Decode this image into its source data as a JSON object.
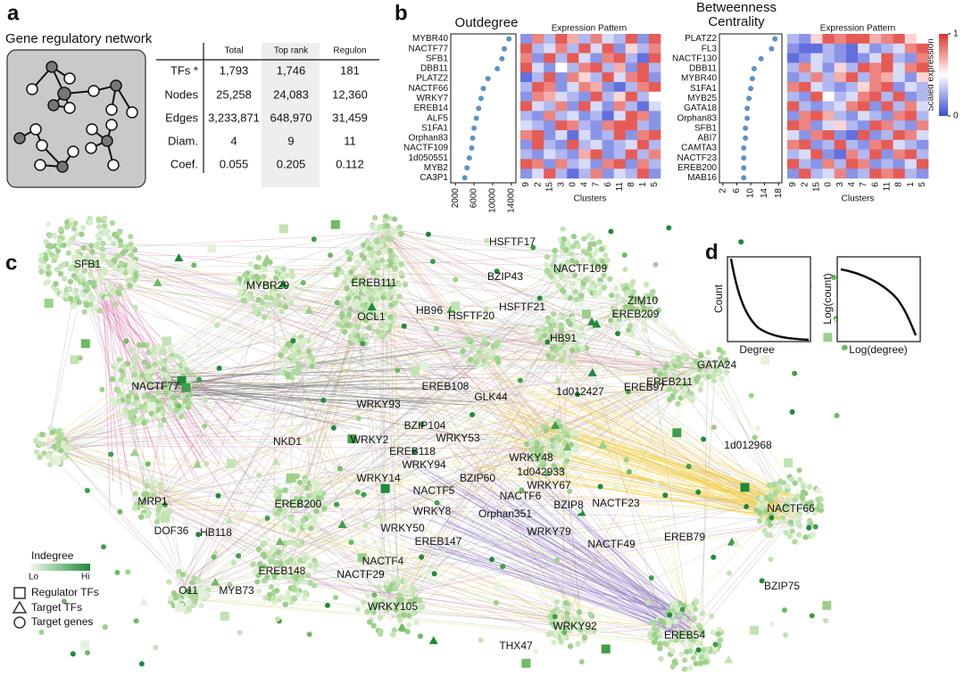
{
  "panel_labels": [
    "a",
    "b",
    "c",
    "d"
  ],
  "panel_a": {
    "title": "Gene regulatory network",
    "table": {
      "columns": [
        "Total",
        "Top rank",
        "Regulon"
      ],
      "rows": [
        {
          "label": "TFs *",
          "cells": [
            "1,793",
            "1,746",
            "181"
          ]
        },
        {
          "label": "Nodes",
          "cells": [
            "25,258",
            "24,083",
            "12,360"
          ]
        },
        {
          "label": "Edges",
          "cells": [
            "3,233,871",
            "648,970",
            "31,459"
          ]
        },
        {
          "label": "Diam.",
          "cells": [
            "4",
            "9",
            "11"
          ]
        },
        {
          "label": "Coef.",
          "cells": [
            "0.055",
            "0.205",
            "0.112"
          ]
        }
      ]
    }
  },
  "chart_data": [
    {
      "type": "dot",
      "title": "Outdegree",
      "color": "#5b93c9",
      "categories": [
        "MYBR40",
        "NACTF77",
        "SFB1",
        "DBB11",
        "PLATZ2",
        "NACTF66",
        "WRKY7",
        "EREB14",
        "ALF5",
        "S1FA1",
        "Orphan83",
        "NACTF109",
        "1d050551",
        "MYB2",
        "CA3P1"
      ],
      "values": [
        13500,
        12500,
        12000,
        11000,
        9000,
        8000,
        7500,
        7000,
        6500,
        6000,
        5700,
        5500,
        5000,
        4500,
        4000
      ],
      "xlim": [
        1000,
        15000
      ],
      "xticks": [
        2000,
        6000,
        10000,
        14000
      ]
    },
    {
      "type": "heatmap",
      "title": "Expression Pattern",
      "x_label": "Clusters",
      "zlim": [
        0,
        1
      ],
      "categories": [
        "9",
        "2",
        "15",
        "3",
        "0",
        "4",
        "7",
        "6",
        "11",
        "8",
        "1",
        "5"
      ],
      "values": [
        [
          0.2,
          0.8,
          0.3,
          0.9,
          0.7,
          0.3,
          0.8,
          0.4,
          0.3,
          0.9,
          0.2,
          0.9
        ],
        [
          0.9,
          0.3,
          0.4,
          0.8,
          0.3,
          0.9,
          0.4,
          0.9,
          0.2,
          0.6,
          0.3,
          0.8
        ],
        [
          0.8,
          0.2,
          0.9,
          0.3,
          0.9,
          0.4,
          0.2,
          0.8,
          0.9,
          0.3,
          0.1,
          0.9
        ],
        [
          0.9,
          0.4,
          0.2,
          0.5,
          0.3,
          0.8,
          0.9,
          0.3,
          0.7,
          0.2,
          0.9,
          0.3
        ],
        [
          0.1,
          0.3,
          0.9,
          0.2,
          0.8,
          0.6,
          0.3,
          0.9,
          0.4,
          0.8,
          0.9,
          0.2
        ],
        [
          0.3,
          0.9,
          0.8,
          0.2,
          0.4,
          0.8,
          0.7,
          0.2,
          0.1,
          0.3,
          0.8,
          0.9
        ],
        [
          0.2,
          0.8,
          0.7,
          0.4,
          0.3,
          0.2,
          0.9,
          0.3,
          0.6,
          0.9,
          0.3,
          0.5
        ],
        [
          0.9,
          0.4,
          0.3,
          0.8,
          0.2,
          0.9,
          0.4,
          0.2,
          0.8,
          0.3,
          0.1,
          0.4
        ],
        [
          0.3,
          0.2,
          0.8,
          0.3,
          0.4,
          0.2,
          0.3,
          0.1,
          0.4,
          0.9,
          0.8,
          0.2
        ],
        [
          0.4,
          0.3,
          0.2,
          0.9,
          0.8,
          0.3,
          0.2,
          0.8,
          0.9,
          0.9,
          0.3,
          0.2
        ],
        [
          0.8,
          0.9,
          0.2,
          0.4,
          0.1,
          0.4,
          0.2,
          0.3,
          0.9,
          0.2,
          0.8,
          0.9
        ],
        [
          0.2,
          0.9,
          0.3,
          0.2,
          0.9,
          0.3,
          0.4,
          0.2,
          0.3,
          0.4,
          0.9,
          0.3
        ],
        [
          0.3,
          0.2,
          0.4,
          0.3,
          0.2,
          0.7,
          0.9,
          0.2,
          0.3,
          0.9,
          0.3,
          0.8
        ],
        [
          0.9,
          0.8,
          0.2,
          0.8,
          0.3,
          0.4,
          0.2,
          0.8,
          0.9,
          0.2,
          0.8,
          0.3
        ],
        [
          0.2,
          0.4,
          0.9,
          0.3,
          0.1,
          0.3,
          0.8,
          0.2,
          0.4,
          0.3,
          0.9,
          0.2
        ]
      ]
    },
    {
      "type": "dot",
      "title": "Betweenness Centrality",
      "color": "#5b93c9",
      "categories": [
        "PLATZ2",
        "FL3",
        "NACTF130",
        "DBB11",
        "MYBR40",
        "S1FA1",
        "MYB25",
        "GATA18",
        "Orphan83",
        "SFB1",
        "ABI7",
        "CAMTA3",
        "NACTF23",
        "EREB200",
        "MAB16"
      ],
      "values": [
        17,
        16,
        13,
        11,
        10.5,
        10,
        9.5,
        9,
        9,
        8.5,
        8.5,
        8,
        8,
        8,
        8
      ],
      "xlim": [
        1,
        19
      ],
      "xticks": [
        2,
        6,
        10,
        14,
        18
      ]
    },
    {
      "type": "heatmap",
      "title": "Expression Pattern",
      "x_label": "Clusters",
      "zlim": [
        0,
        1
      ],
      "zticks": [
        0,
        1
      ],
      "zlabel": "Scaled expression",
      "categories": [
        "9",
        "2",
        "15",
        "0",
        "3",
        "4",
        "7",
        "6",
        "11",
        "8",
        "1",
        "5"
      ],
      "values": [
        [
          0.3,
          0.2,
          0.6,
          0.9,
          0.8,
          0.9,
          0.9,
          0.7,
          0.8,
          0.9,
          0.6,
          0.5
        ],
        [
          0.2,
          0.1,
          0.1,
          0.3,
          0.2,
          0.1,
          0.4,
          0.2,
          0.3,
          0.4,
          0.8,
          0.9
        ],
        [
          0.1,
          0.2,
          0.4,
          0.3,
          0.2,
          0.1,
          0.2,
          0.4,
          0.9,
          0.3,
          0.2,
          0.8
        ],
        [
          0.3,
          0.8,
          0.4,
          0.2,
          0.6,
          0.3,
          0.9,
          0.8,
          0.9,
          0.4,
          0.8,
          0.9
        ],
        [
          0.2,
          0.3,
          0.8,
          0.3,
          0.7,
          0.9,
          0.3,
          0.8,
          0.7,
          0.4,
          0.2,
          0.6
        ],
        [
          0.8,
          0.9,
          0.4,
          0.3,
          0.2,
          0.3,
          0.6,
          0.8,
          0.9,
          0.2,
          0.4,
          0.3
        ],
        [
          0.3,
          0.2,
          0.9,
          0.5,
          0.3,
          0.4,
          0.8,
          0.9,
          0.3,
          0.9,
          0.2,
          0.3
        ],
        [
          0.9,
          0.3,
          0.2,
          0.3,
          0.4,
          0.8,
          0.9,
          0.2,
          0.9,
          0.3,
          0.8,
          0.4
        ],
        [
          0.2,
          0.8,
          0.9,
          0.7,
          0.3,
          0.2,
          0.4,
          0.3,
          0.2,
          0.8,
          0.9,
          0.3
        ],
        [
          0.9,
          0.8,
          0.2,
          0.4,
          0.6,
          0.3,
          0.2,
          0.9,
          0.8,
          0.3,
          0.2,
          0.8
        ],
        [
          0.4,
          0.2,
          0.8,
          0.9,
          0.2,
          0.1,
          0.9,
          0.2,
          0.3,
          0.9,
          0.8,
          0.4
        ],
        [
          0.8,
          0.9,
          0.2,
          0.3,
          0.9,
          0.3,
          0.2,
          0.8,
          0.9,
          0.4,
          0.3,
          0.2
        ],
        [
          0.3,
          0.4,
          0.9,
          0.2,
          0.1,
          0.8,
          0.3,
          0.9,
          0.2,
          0.8,
          0.9,
          0.3
        ],
        [
          0.9,
          0.3,
          0.2,
          0.8,
          0.3,
          0.9,
          0.8,
          0.2,
          0.3,
          0.2,
          0.4,
          0.9
        ],
        [
          0.2,
          0.9,
          0.3,
          0.4,
          0.8,
          0.2,
          0.3,
          0.9,
          0.8,
          0.9,
          0.3,
          0.2
        ]
      ]
    }
  ],
  "network": {
    "nodes": [
      "SFB1",
      "MYBR29",
      "EREB111",
      "HSFTF17",
      "BZIP43",
      "NACTF109",
      "ZIM10",
      "EREB209",
      "HSFTF21",
      "OCL1",
      "HB96",
      "HSFTF20",
      "HB91",
      "GATA24",
      "NACTF77",
      "EREB108",
      "EREB211",
      "GLK44",
      "WRKY93",
      "1d012427",
      "EREB97",
      "BZIP104",
      "WRKY53",
      "NKD1",
      "WRKY2",
      "EREB118",
      "1d012968",
      "WRKY94",
      "WRKY48",
      "1d042933",
      "WRKY14",
      "BZIP60",
      "NACTF5",
      "NACTF6",
      "WRKY67",
      "MRP1",
      "EREB200",
      "BZIP8",
      "NACTF23",
      "NACTF66",
      "WRKY8",
      "Orphan351",
      "DOF36",
      "HB118",
      "WRKY50",
      "WRKY79",
      "EREB79",
      "EREB147",
      "NACTF49",
      "NACTF4",
      "EREB148",
      "NACTF29",
      "BZIP75",
      "O11",
      "MYB73",
      "WRKY105",
      "WRKY92",
      "THX47",
      "EREB54"
    ],
    "legend": {
      "title": "Indegree",
      "low": "Lo",
      "high": "Hi",
      "shapes": [
        "Regulator TFs",
        "Target TFs",
        "Target genes"
      ]
    }
  },
  "panel_d": {
    "plots": [
      {
        "x_label": "Degree",
        "y_label": "Count"
      },
      {
        "x_label": "Log(degree)",
        "y_label": "Log(count)"
      }
    ]
  }
}
